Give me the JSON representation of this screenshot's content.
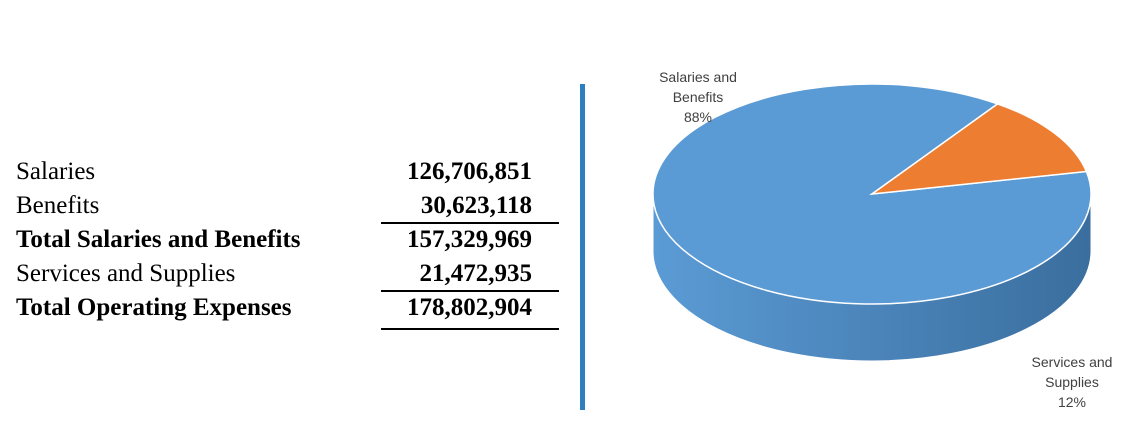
{
  "table": {
    "rows": [
      {
        "label": "Salaries",
        "value": "126,706,851",
        "bold": false
      },
      {
        "label": "Benefits",
        "value": "30,623,118",
        "bold": false
      },
      {
        "label": "Total Salaries and Benefits",
        "value": "157,329,969",
        "bold": true
      },
      {
        "label": "Services and Supplies",
        "value": "21,472,935",
        "bold": false
      },
      {
        "label": "Total Operating Expenses",
        "value": "178,802,904",
        "bold": true
      }
    ]
  },
  "chart_data": {
    "type": "pie",
    "three_d": true,
    "title": "",
    "slices": [
      {
        "label_lines": [
          "Salaries and",
          "Benefits",
          "88%"
        ],
        "percent": 88,
        "value": 157329969,
        "color": "#5b9bd5",
        "side_color": "#3a6e9e"
      },
      {
        "label_lines": [
          "Services and",
          "Supplies",
          "12%"
        ],
        "percent": 12,
        "value": 21472935,
        "color": "#ed7d31",
        "side_color": "#6b3812"
      }
    ]
  }
}
